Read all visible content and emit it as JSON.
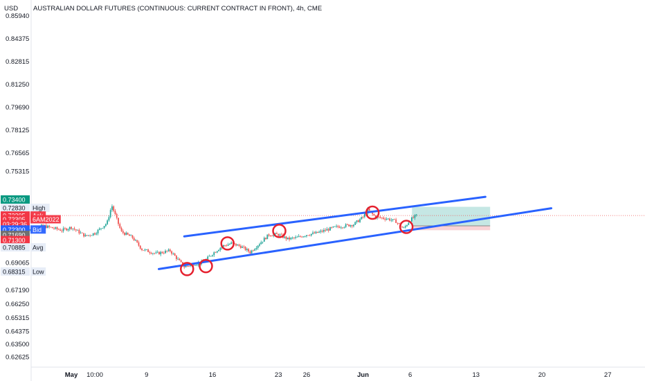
{
  "header": {
    "title": "AUSTRALIAN DOLLAR FUTURES (CONTINUOUS: CURRENT CONTRACT IN FRONT), 4h, CME",
    "currency": "USD"
  },
  "colors": {
    "up": "#26a69a",
    "down": "#ef5350",
    "channel": "#2962ff",
    "circle": "#e5202e",
    "profit_zone": "#b2dfdb",
    "loss_zone": "#f8c8cc",
    "axis_text": "#131722"
  },
  "chart_data": {
    "type": "candlestick",
    "title": "AUSTRALIAN DOLLAR FUTURES (CONTINUOUS: CURRENT CONTRACT IN FRONT), 4h, CME",
    "ylabel": "USD",
    "ylim": [
      0.6195,
      0.8655
    ],
    "y_ticks": [
      "0.85940",
      "0.84375",
      "0.82815",
      "0.81250",
      "0.79690",
      "0.78125",
      "0.76565",
      "0.75315",
      "0.69065",
      "0.67190",
      "0.66250",
      "0.65315",
      "0.64375",
      "0.63500",
      "0.62625"
    ],
    "x_ticks": [
      {
        "label": "May",
        "bold": true,
        "day": 1
      },
      {
        "label": "10:00",
        "bold": false,
        "day": 3.5
      },
      {
        "label": "9",
        "bold": false,
        "day": 9
      },
      {
        "label": "16",
        "bold": false,
        "day": 16
      },
      {
        "label": "23",
        "bold": false,
        "day": 23
      },
      {
        "label": "26",
        "bold": false,
        "day": 26
      },
      {
        "label": "Jun",
        "bold": true,
        "day": 32
      },
      {
        "label": "6",
        "bold": false,
        "day": 37
      },
      {
        "label": "13",
        "bold": false,
        "day": 44
      },
      {
        "label": "20",
        "bold": false,
        "day": 51
      },
      {
        "label": "27",
        "bold": false,
        "day": 58
      }
    ],
    "price_labels": [
      {
        "value": "0.73400",
        "tag": "",
        "color": "#089981",
        "y": 0.734
      },
      {
        "value": "0.72830",
        "tag": "High",
        "color": "#e7edf7",
        "y": 0.7283
      },
      {
        "value": "0.72305",
        "tag": "Ask",
        "color": "#f23645",
        "y": 0.72305
      },
      {
        "value": "0.72305",
        "tag": "6AM2022",
        "color": "#f23645",
        "y": 0.7205
      },
      {
        "value": "03:29:36",
        "tag": "",
        "color": "#f23645",
        "y": 0.7172
      },
      {
        "value": "0.72300",
        "tag": "Bid",
        "color": "#2962ff",
        "y": 0.7135
      },
      {
        "value": "0.71690",
        "tag": "",
        "color": "#707070",
        "y": 0.7098
      },
      {
        "value": "0.71300",
        "tag": "",
        "color": "#f23645",
        "y": 0.7063
      },
      {
        "value": "0.70885",
        "tag": "Avg",
        "color": "#e7edf7",
        "y": 0.7013
      },
      {
        "value": "0.68315",
        "tag": "Low",
        "color": "#e7edf7",
        "y": 0.6848
      }
    ],
    "anchors": [
      [
        -4,
        0.712
      ],
      [
        -2,
        0.716
      ],
      [
        0,
        0.713
      ],
      [
        1,
        0.715
      ],
      [
        2.5,
        0.709
      ],
      [
        3.5,
        0.711
      ],
      [
        4.8,
        0.718
      ],
      [
        5.3,
        0.73
      ],
      [
        6.3,
        0.712
      ],
      [
        7.5,
        0.708
      ],
      [
        8.5,
        0.7
      ],
      [
        10,
        0.697
      ],
      [
        11.5,
        0.699
      ],
      [
        13,
        0.688
      ],
      [
        14,
        0.69
      ],
      [
        15,
        0.691
      ],
      [
        16,
        0.697
      ],
      [
        17,
        0.702
      ],
      [
        18,
        0.704
      ],
      [
        19,
        0.702
      ],
      [
        20,
        0.698
      ],
      [
        21,
        0.704
      ],
      [
        22,
        0.71
      ],
      [
        23,
        0.71
      ],
      [
        24,
        0.707
      ],
      [
        25,
        0.708
      ],
      [
        26,
        0.71
      ],
      [
        27,
        0.711
      ],
      [
        28,
        0.713
      ],
      [
        29,
        0.715
      ],
      [
        30,
        0.716
      ],
      [
        31,
        0.717
      ],
      [
        32,
        0.722
      ],
      [
        32.5,
        0.727
      ],
      [
        33.3,
        0.722
      ],
      [
        34.5,
        0.721
      ],
      [
        35.5,
        0.719
      ],
      [
        36.3,
        0.714
      ],
      [
        37,
        0.72
      ],
      [
        37.8,
        0.7235
      ]
    ],
    "channel": [
      {
        "from": [
          13,
          0.7088
        ],
        "to": [
          45,
          0.7358
        ]
      },
      {
        "from": [
          10.3,
          0.6865
        ],
        "to": [
          52,
          0.728
        ]
      }
    ],
    "circles": [
      [
        13.3,
        0.6865
      ],
      [
        15.3,
        0.6885
      ],
      [
        17.6,
        0.704
      ],
      [
        23.1,
        0.7125
      ],
      [
        33,
        0.725
      ],
      [
        36.6,
        0.7153
      ]
    ],
    "position": {
      "entry": 0.716,
      "target": 0.729,
      "stop": 0.713,
      "from_day": 37.2,
      "to_day": 45.5
    }
  }
}
